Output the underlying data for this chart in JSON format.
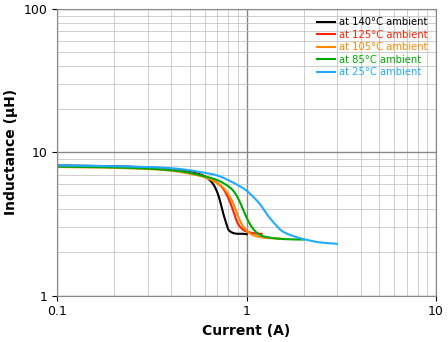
{
  "title": "",
  "xlabel": "Current (A)",
  "ylabel": "Inductance (μH)",
  "xlim": [
    0.1,
    10
  ],
  "ylim": [
    1,
    100
  ],
  "major_grid_color": "#888888",
  "minor_grid_color": "#bbbbbb",
  "background_color": "#ffffff",
  "curves": [
    {
      "color": "#000000",
      "label": "at 140°C ambient",
      "label_color": "#000000",
      "x": [
        0.1,
        0.15,
        0.2,
        0.3,
        0.4,
        0.5,
        0.55,
        0.6,
        0.63,
        0.66,
        0.69,
        0.72,
        0.75,
        0.78,
        0.8,
        0.82,
        0.84,
        0.86,
        0.9,
        1.0
      ],
      "y": [
        8.1,
        8.05,
        8.0,
        7.85,
        7.65,
        7.3,
        7.1,
        6.8,
        6.5,
        6.1,
        5.5,
        4.7,
        3.8,
        3.2,
        2.9,
        2.8,
        2.75,
        2.72,
        2.7,
        2.68
      ]
    },
    {
      "color": "#ff2200",
      "label": "at 125°C ambient",
      "label_color": "#ff2200",
      "x": [
        0.1,
        0.15,
        0.2,
        0.3,
        0.4,
        0.5,
        0.6,
        0.65,
        0.7,
        0.75,
        0.8,
        0.85,
        0.88,
        0.91,
        0.94,
        0.97,
        1.0,
        1.05,
        1.1,
        1.2
      ],
      "y": [
        8.0,
        7.95,
        7.9,
        7.75,
        7.55,
        7.2,
        6.8,
        6.5,
        6.1,
        5.6,
        4.8,
        3.9,
        3.4,
        3.1,
        2.95,
        2.85,
        2.8,
        2.75,
        2.72,
        2.7
      ]
    },
    {
      "color": "#ff8800",
      "label": "at 105°C ambient",
      "label_color": "#ff8800",
      "x": [
        0.1,
        0.15,
        0.2,
        0.3,
        0.4,
        0.5,
        0.6,
        0.7,
        0.75,
        0.8,
        0.85,
        0.9,
        0.95,
        1.0,
        1.05,
        1.1,
        1.15,
        1.2,
        1.3,
        1.5
      ],
      "y": [
        7.9,
        7.85,
        7.8,
        7.65,
        7.45,
        7.1,
        6.7,
        6.1,
        5.7,
        5.1,
        4.4,
        3.6,
        3.1,
        2.85,
        2.7,
        2.62,
        2.58,
        2.55,
        2.52,
        2.5
      ]
    },
    {
      "color": "#00aa00",
      "label": "at 85°C ambient",
      "label_color": "#00aa00",
      "x": [
        0.1,
        0.15,
        0.2,
        0.3,
        0.4,
        0.5,
        0.6,
        0.7,
        0.8,
        0.85,
        0.9,
        0.95,
        1.0,
        1.05,
        1.1,
        1.2,
        1.3,
        1.4,
        1.5,
        1.7,
        2.0
      ],
      "y": [
        7.95,
        7.9,
        7.85,
        7.7,
        7.5,
        7.2,
        6.8,
        6.4,
        5.8,
        5.4,
        4.8,
        4.1,
        3.5,
        3.1,
        2.85,
        2.62,
        2.55,
        2.51,
        2.49,
        2.47,
        2.46
      ]
    },
    {
      "color": "#22aaff",
      "label": "at 25°C ambient",
      "label_color": "#22aaff",
      "x": [
        0.1,
        0.15,
        0.2,
        0.3,
        0.4,
        0.5,
        0.6,
        0.7,
        0.8,
        0.9,
        1.0,
        1.1,
        1.2,
        1.3,
        1.4,
        1.5,
        1.7,
        1.9,
        2.1,
        2.3,
        2.6,
        3.0
      ],
      "y": [
        8.1,
        8.05,
        8.0,
        7.9,
        7.75,
        7.5,
        7.2,
        6.9,
        6.4,
        5.9,
        5.4,
        4.8,
        4.2,
        3.6,
        3.2,
        2.9,
        2.65,
        2.52,
        2.44,
        2.38,
        2.33,
        2.3
      ]
    }
  ]
}
